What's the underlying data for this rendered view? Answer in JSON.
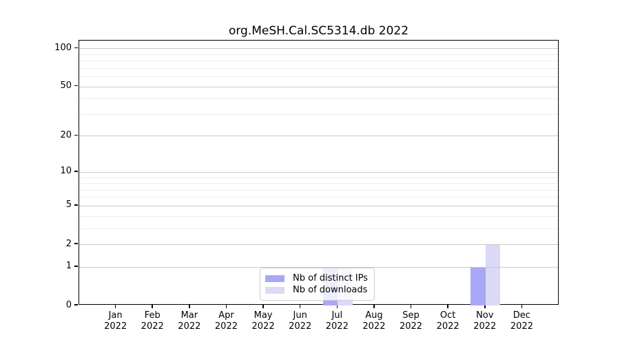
{
  "title": "org.MeSH.Cal.SC5314.db 2022",
  "chart_data": {
    "type": "bar",
    "categories": [
      "Jan",
      "Feb",
      "Mar",
      "Apr",
      "May",
      "Jun",
      "Jul",
      "Aug",
      "Sep",
      "Oct",
      "Nov",
      "Dec"
    ],
    "x_year_label": "2022",
    "series": [
      {
        "name": "Nb of distinct IPs",
        "color": "#a8a8f7",
        "values": [
          0,
          0,
          0,
          0,
          0,
          0,
          1,
          0,
          0,
          0,
          1,
          0
        ]
      },
      {
        "name": "Nb of downloads",
        "color": "#dadaf7",
        "values": [
          0,
          0,
          0,
          0,
          0,
          0,
          1,
          0,
          0,
          0,
          2,
          0
        ]
      }
    ],
    "yticks": [
      0,
      1,
      2,
      5,
      10,
      20,
      50,
      100
    ],
    "yticks_minor": [
      3,
      4,
      6,
      7,
      8,
      9,
      30,
      40,
      60,
      70,
      80,
      90
    ],
    "y_scale": "log10(1+y)",
    "ylim": [
      0,
      115
    ],
    "grid": "horizontal, drawn over bars",
    "legend_position": "inside bottom-center",
    "colors": {
      "major_grid": "#c9c9c9",
      "minor_grid": "#ececec",
      "axis": "#000000",
      "background": "#ffffff"
    }
  }
}
